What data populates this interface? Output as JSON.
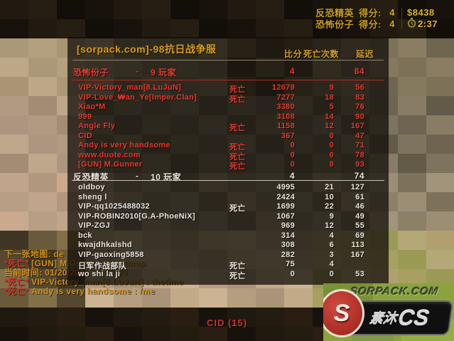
{
  "hud": {
    "rows": [
      {
        "team": "反恐精英",
        "score_label": "得分:",
        "score": "4"
      },
      {
        "team": "恐怖份子",
        "score_label": "得分:",
        "score": "4"
      }
    ],
    "money": "$8438",
    "time": "2:37",
    "spectating": "CID (15)"
  },
  "scoreboard": {
    "title": "[sorpack.com]-98抗日战争服",
    "col_score": "比分",
    "col_deaths": "死亡次数",
    "col_latency": "延迟",
    "dead_label": "死亡",
    "dash": "-",
    "players_label": "玩家",
    "teams": [
      {
        "name": "恐怖份子",
        "count": "9",
        "score": "4",
        "latency": "84",
        "side": "t",
        "players": [
          {
            "name": "VIP-Victory_man[8.LuJuN]",
            "dead": true,
            "score": "12679",
            "deaths": "9",
            "latency": "56"
          },
          {
            "name": "VIP-Love_₩an_Ye[Imper.Clan]",
            "dead": true,
            "score": "7277",
            "deaths": "18",
            "latency": "83"
          },
          {
            "name": "Xiao*M",
            "dead": false,
            "score": "3380",
            "deaths": "5",
            "latency": "76"
          },
          {
            "name": "999",
            "dead": false,
            "score": "3108",
            "deaths": "14",
            "latency": "90"
          },
          {
            "name": "Angle Fly",
            "dead": true,
            "score": "1158",
            "deaths": "12",
            "latency": "167"
          },
          {
            "name": "CID",
            "dead": false,
            "score": "367",
            "deaths": "0",
            "latency": "47"
          },
          {
            "name": "Andy is very handsome",
            "dead": true,
            "score": "0",
            "deaths": "0",
            "latency": "71"
          },
          {
            "name": "www.duote.com",
            "dead": true,
            "score": "0",
            "deaths": "0",
            "latency": "78"
          },
          {
            "name": "[GUN] M.Gunner",
            "dead": true,
            "score": "0",
            "deaths": "0",
            "latency": "93"
          }
        ]
      },
      {
        "name": "反恐精英",
        "count": "10",
        "score": "4",
        "latency": "74",
        "side": "ct",
        "players": [
          {
            "name": "oldboy",
            "dead": false,
            "score": "4995",
            "deaths": "21",
            "latency": "127"
          },
          {
            "name": "sheng l",
            "dead": false,
            "score": "2424",
            "deaths": "10",
            "latency": "61"
          },
          {
            "name": "VIP-qq1025488032",
            "dead": true,
            "score": "1699",
            "deaths": "22",
            "latency": "46"
          },
          {
            "name": "VIP-ROBIN2010[G.A-PhoeNiX]",
            "dead": false,
            "score": "1067",
            "deaths": "9",
            "latency": "49"
          },
          {
            "name": "VIP-ZGJ",
            "dead": false,
            "score": "969",
            "deaths": "12",
            "latency": "55"
          },
          {
            "name": "bck",
            "dead": false,
            "score": "314",
            "deaths": "4",
            "latency": "69"
          },
          {
            "name": "kwajdhkalshd",
            "dead": false,
            "score": "308",
            "deaths": "6",
            "latency": "113"
          },
          {
            "name": "VIP-gaoxing5858",
            "dead": false,
            "score": "282",
            "deaths": "3",
            "latency": "167"
          },
          {
            "name": "日军作战部队",
            "dead": true,
            "score": "75",
            "deaths": "4",
            "latency": ""
          },
          {
            "name": "wo shi la ji",
            "dead": true,
            "score": "0",
            "deaths": "0",
            "latency": "53"
          }
        ]
      }
    ]
  },
  "chat": {
    "lines": [
      {
        "prefix": "",
        "body": "下一张地图: de"
      },
      {
        "prefix": "*死亡*",
        "body": " [GUN] M.Gunner : nextmap"
      },
      {
        "prefix": "",
        "body": "当前时间: 01/20/2011 16:00:09"
      },
      {
        "prefix": "*死亡*",
        "body": " VIP-Victory_man[8.LuJuN] : thetime"
      },
      {
        "prefix": "*死亡*",
        "body": " Andy is very handsome : /me"
      }
    ]
  },
  "watermark": {
    "site": "SORPACK.COM",
    "brand_prefix": "素沐",
    "brand_suffix": "CS",
    "emblem_letter": "S"
  },
  "colors": {
    "gold": "#d79d1d",
    "hud_gold": "#d9ab1e",
    "t_red": "#e23a2e",
    "ct_white": "#e6e4da",
    "chat_orange": "#cf8f1a",
    "chat_red": "#d23528",
    "spectator_red": "#c23830",
    "logo_green": "#8ba23e"
  }
}
